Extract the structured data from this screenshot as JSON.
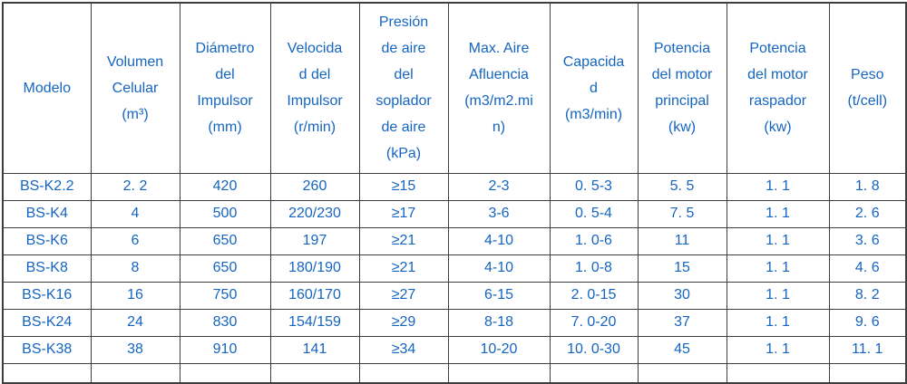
{
  "colors": {
    "text_blue": "#1565c0",
    "border": "#3e3e3e",
    "background": "#ffffff"
  },
  "table": {
    "columns": [
      {
        "id": "modelo",
        "header": "Modelo"
      },
      {
        "id": "volumen-celular",
        "header": "Volumen\nCelular\n(m³)"
      },
      {
        "id": "diametro-impulsor",
        "header": "Diámetro\ndel\nImpulsor\n(mm)"
      },
      {
        "id": "velocidad-impulsor",
        "header": "Velocida\nd del\nImpulsor\n(r/min)"
      },
      {
        "id": "presion-aire",
        "header": "Presión\nde aire\ndel\nsoplador\nde aire\n(kPa)"
      },
      {
        "id": "max-aire-afluencia",
        "header": "Max. Aire\nAfluencia\n(m3/m2.mi\nn)"
      },
      {
        "id": "capacidad",
        "header": "Capacida\nd\n(m3/min)"
      },
      {
        "id": "potencia-principal",
        "header": "Potencia\ndel motor\nprincipal\n(kw)"
      },
      {
        "id": "potencia-raspador",
        "header": "Potencia\ndel motor\nraspador\n(kw)"
      },
      {
        "id": "peso",
        "header": "Peso\n(t/cell)"
      }
    ],
    "rows": [
      {
        "cells": [
          "BS-K2.2",
          "2. 2",
          "420",
          "260",
          "≥15",
          "2-3",
          "0. 5-3",
          "5. 5",
          "1. 1",
          "1. 8"
        ]
      },
      {
        "cells": [
          "BS-K4",
          "4",
          "500",
          "220/230",
          "≥17",
          "3-6",
          "0. 5-4",
          "7. 5",
          "1. 1",
          "2. 6"
        ]
      },
      {
        "cells": [
          "BS-K6",
          "6",
          "650",
          "197",
          "≥21",
          "4-10",
          "1. 0-6",
          "11",
          "1. 1",
          "3. 6"
        ]
      },
      {
        "cells": [
          "BS-K8",
          "8",
          "650",
          "180/190",
          "≥21",
          "4-10",
          "1. 0-8",
          "15",
          "1. 1",
          "4. 6"
        ]
      },
      {
        "cells": [
          "BS-K16",
          "16",
          "750",
          "160/170",
          "≥27",
          "6-15",
          "2. 0-15",
          "30",
          "1. 1",
          "8. 2"
        ]
      },
      {
        "cells": [
          "BS-K24",
          "24",
          "830",
          "154/159",
          "≥29",
          "8-18",
          "7. 0-20",
          "37",
          "1. 1",
          "9. 6"
        ]
      },
      {
        "cells": [
          "BS-K38",
          "38",
          "910",
          "141",
          "≥34",
          "10-20",
          "10. 0-30",
          "45",
          "1. 1",
          "11. 1"
        ]
      }
    ]
  },
  "chart_data": {
    "type": "table",
    "title": "",
    "columns": [
      "Modelo",
      "Volumen Celular (m³)",
      "Diámetro del Impulsor (mm)",
      "Velocidad del Impulsor (r/min)",
      "Presión de aire del soplador de aire (kPa)",
      "Max. Aire Afluencia (m3/m2.min)",
      "Capacidad (m3/min)",
      "Potencia del motor principal (kw)",
      "Potencia del motor raspador (kw)",
      "Peso (t/cell)"
    ],
    "rows": [
      [
        "BS-K2.2",
        "2.2",
        "420",
        "260",
        "≥15",
        "2-3",
        "0.5-3",
        "5.5",
        "1.1",
        "1.8"
      ],
      [
        "BS-K4",
        "4",
        "500",
        "220/230",
        "≥17",
        "3-6",
        "0.5-4",
        "7.5",
        "1.1",
        "2.6"
      ],
      [
        "BS-K6",
        "6",
        "650",
        "197",
        "≥21",
        "4-10",
        "1.0-6",
        "11",
        "1.1",
        "3.6"
      ],
      [
        "BS-K8",
        "8",
        "650",
        "180/190",
        "≥21",
        "4-10",
        "1.0-8",
        "15",
        "1.1",
        "4.6"
      ],
      [
        "BS-K16",
        "16",
        "750",
        "160/170",
        "≥27",
        "6-15",
        "2.0-15",
        "30",
        "1.1",
        "8.2"
      ],
      [
        "BS-K24",
        "24",
        "830",
        "154/159",
        "≥29",
        "8-18",
        "7.0-20",
        "37",
        "1.1",
        "9.6"
      ],
      [
        "BS-K38",
        "38",
        "910",
        "141",
        "≥34",
        "10-20",
        "10.0-30",
        "45",
        "1.1",
        "11.1"
      ]
    ]
  }
}
